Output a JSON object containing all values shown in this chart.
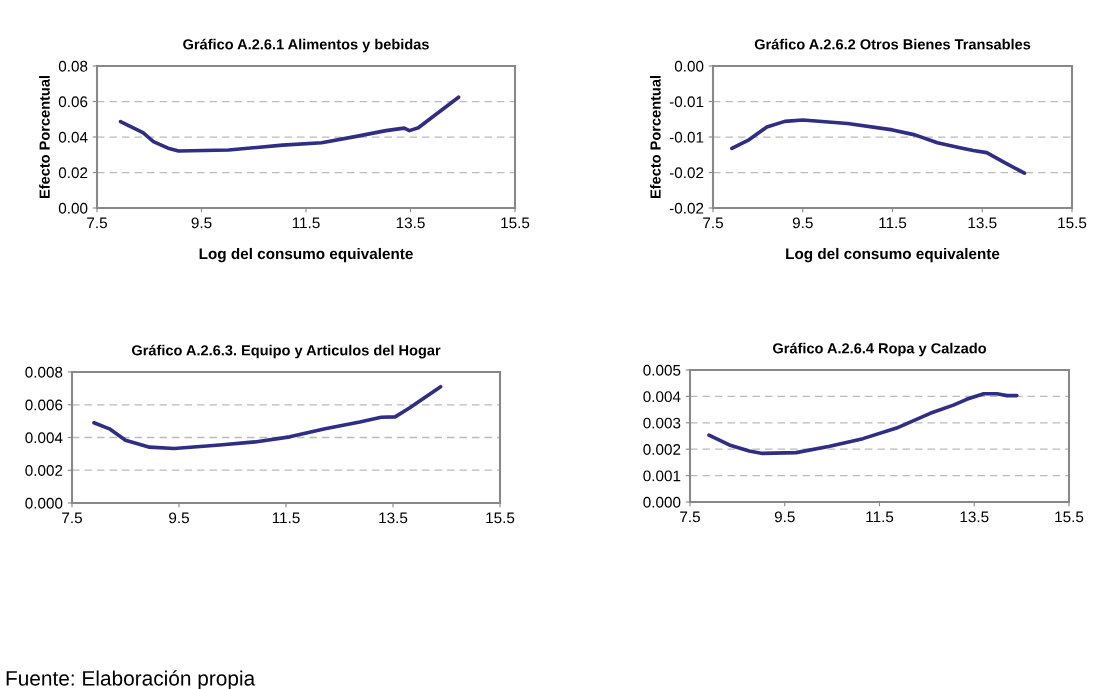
{
  "chart_data": [
    {
      "type": "line",
      "title": "Gráfico A.2.6.1 Alimentos y bebidas",
      "xlabel": "Log del consumo equivalente",
      "ylabel": "Efecto Porcentual",
      "grid": "y",
      "line_style": "solid",
      "xlim": [
        7.5,
        15.5
      ],
      "xticks": [
        7.5,
        9.5,
        11.5,
        13.5,
        15.5
      ],
      "ylim": [
        0,
        0.08
      ],
      "yticks": [
        {
          "value": 0,
          "label": "0.00"
        },
        {
          "value": 0.02,
          "label": "0.02"
        },
        {
          "value": 0.04,
          "label": "0.04"
        },
        {
          "value": 0.06,
          "label": "0.06"
        },
        {
          "value": 0.08,
          "label": "0.08"
        }
      ],
      "series": [
        {
          "color": "#2e2e86",
          "x": [
            7.95,
            8.38,
            8.58,
            8.86,
            9.06,
            10.02,
            11.05,
            11.8,
            12.49,
            13.03,
            13.38,
            13.48,
            13.65,
            13.99,
            14.42
          ],
          "values": [
            0.0487,
            0.0425,
            0.0374,
            0.0337,
            0.0321,
            0.0327,
            0.0354,
            0.0368,
            0.0405,
            0.0436,
            0.045,
            0.0436,
            0.0452,
            0.0528,
            0.0624
          ]
        }
      ]
    },
    {
      "type": "line",
      "title": "Gráfico A.2.6.2 Otros Bienes Transables",
      "xlabel": "Log del consumo equivalente",
      "ylabel": "Efecto Porcentual",
      "grid": "y",
      "line_style": "solid",
      "xlim": [
        7.5,
        15.5
      ],
      "xticks": [
        7.5,
        9.5,
        11.5,
        13.5,
        15.5
      ],
      "ylim": [
        -0.02,
        0
      ],
      "yticks": [
        {
          "value": -0.02,
          "label": "-0.02"
        },
        {
          "value": -0.015,
          "label": "-0.02"
        },
        {
          "value": -0.01,
          "label": "-0.01"
        },
        {
          "value": -0.005,
          "label": "-0.01"
        },
        {
          "value": 0,
          "label": "0.00"
        }
      ],
      "series": [
        {
          "color": "#2e2e86",
          "x": [
            7.92,
            8.3,
            8.7,
            9.1,
            9.5,
            10.5,
            11.5,
            12.0,
            12.5,
            13.0,
            13.3,
            13.6,
            14.0,
            14.44
          ],
          "values": [
            -0.0116,
            -0.0104,
            -0.0086,
            -0.0078,
            -0.0076,
            -0.0081,
            -0.009,
            -0.0097,
            -0.0108,
            -0.0115,
            -0.0119,
            -0.0122,
            -0.0136,
            -0.0151
          ]
        }
      ]
    },
    {
      "type": "line",
      "title": "Gráfico A.2.6.3. Equipo y Articulos del Hogar",
      "grid": "y",
      "line_style": "solid",
      "xlim": [
        7.5,
        15.5
      ],
      "xticks": [
        7.5,
        9.5,
        11.5,
        13.5,
        15.5
      ],
      "ylim": [
        0,
        0.008
      ],
      "yticks": [
        {
          "value": 0,
          "label": "0.000"
        },
        {
          "value": 0.002,
          "label": "0.002"
        },
        {
          "value": 0.004,
          "label": "0.004"
        },
        {
          "value": 0.006,
          "label": "0.006"
        },
        {
          "value": 0.008,
          "label": "0.008"
        }
      ],
      "series": [
        {
          "color": "#2e2e86",
          "x": [
            7.91,
            8.2,
            8.5,
            8.95,
            9.41,
            10.26,
            10.92,
            11.57,
            12.23,
            12.88,
            13.28,
            13.54,
            13.8,
            14.39
          ],
          "values": [
            0.0049,
            0.00453,
            0.00383,
            0.00341,
            0.00333,
            0.00354,
            0.00373,
            0.00404,
            0.00453,
            0.00495,
            0.00524,
            0.00526,
            0.00579,
            0.0071
          ]
        }
      ]
    },
    {
      "type": "line",
      "title": "Gráfico A.2.6.4 Ropa y Calzado",
      "grid": "y",
      "line_style": "solid",
      "xlim": [
        7.5,
        15.5
      ],
      "xticks": [
        7.5,
        9.5,
        11.5,
        13.5,
        15.5
      ],
      "ylim": [
        0,
        0.005
      ],
      "yticks": [
        {
          "value": 0,
          "label": "0.000"
        },
        {
          "value": 0.001,
          "label": "0.001"
        },
        {
          "value": 0.002,
          "label": "0.002"
        },
        {
          "value": 0.003,
          "label": "0.003"
        },
        {
          "value": 0.004,
          "label": "0.004"
        },
        {
          "value": 0.005,
          "label": "0.005"
        }
      ],
      "series": [
        {
          "color": "#2e2e86",
          "x": [
            7.9,
            8.33,
            8.75,
            9.03,
            9.74,
            10.45,
            11.15,
            11.86,
            12.57,
            13.06,
            13.34,
            13.7,
            13.98,
            14.19,
            14.4
          ],
          "values": [
            0.00253,
            0.00216,
            0.00193,
            0.00184,
            0.00187,
            0.00211,
            0.0024,
            0.0028,
            0.00336,
            0.00367,
            0.00389,
            0.0041,
            0.0041,
            0.00403,
            0.00403
          ]
        }
      ],
      "annotations": [
        "Fuente: Elaboración propia"
      ]
    }
  ]
}
